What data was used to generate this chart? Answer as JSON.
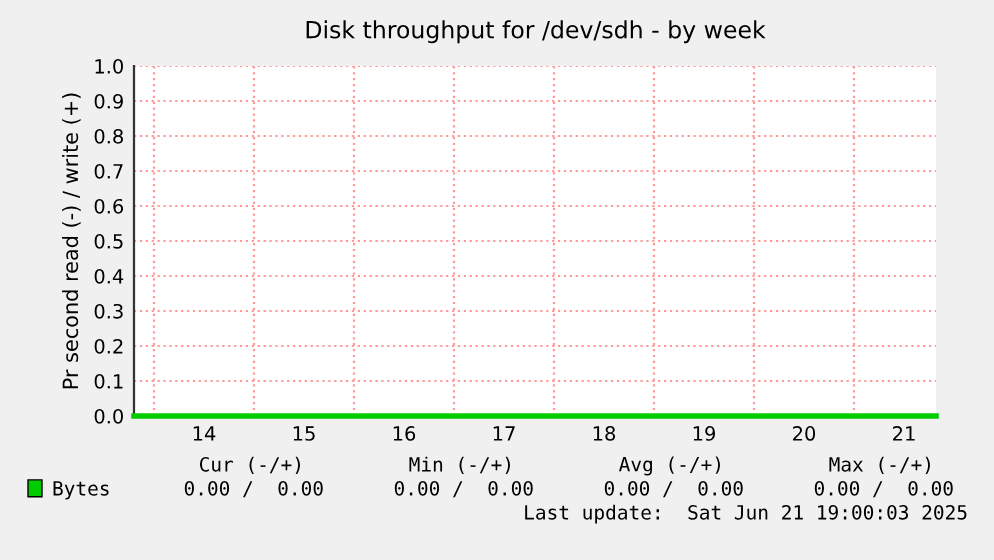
{
  "chart_data": {
    "type": "line",
    "title": "Disk throughput for /dev/sdh - by week",
    "ylabel": "Pr second read (-) / write (+)",
    "x": [
      13.8,
      21.82
    ],
    "series": [
      {
        "name": "Bytes",
        "color": "#00cc00",
        "values": [
          0,
          0
        ]
      }
    ],
    "xlim": [
      13.8,
      21.82
    ],
    "xticks": [
      {
        "value": 14,
        "label": null
      },
      {
        "value": 14.5,
        "label": "14"
      },
      {
        "value": 15,
        "label": null
      },
      {
        "value": 15.5,
        "label": "15"
      },
      {
        "value": 16,
        "label": null
      },
      {
        "value": 16.5,
        "label": "16"
      },
      {
        "value": 17,
        "label": null
      },
      {
        "value": 17.5,
        "label": "17"
      },
      {
        "value": 18,
        "label": null
      },
      {
        "value": 18.5,
        "label": "18"
      },
      {
        "value": 19,
        "label": null
      },
      {
        "value": 19.5,
        "label": "19"
      },
      {
        "value": 20,
        "label": null
      },
      {
        "value": 20.5,
        "label": "20"
      },
      {
        "value": 21,
        "label": null
      },
      {
        "value": 21.5,
        "label": "21"
      }
    ],
    "ylim": [
      0,
      1.0
    ],
    "yticks": [
      {
        "value": 0,
        "label": "0.0"
      },
      0.1,
      0.2,
      0.3,
      0.4,
      0.5,
      0.6,
      0.7,
      0.8,
      0.9,
      {
        "value": 1.0,
        "label": "1.0"
      }
    ],
    "grid": true,
    "legend": "bottom left",
    "annotations": [
      "Cur (-/+)",
      "Min (-/+)",
      "Avg (-/+)",
      "Max (-/+)",
      "0.00 /  0.00",
      "0.00 /  0.00",
      "0.00 /  0.00",
      "0.00 /  0.00",
      "Last update:  Sat Jun 21 19:00:03 2025"
    ]
  }
}
